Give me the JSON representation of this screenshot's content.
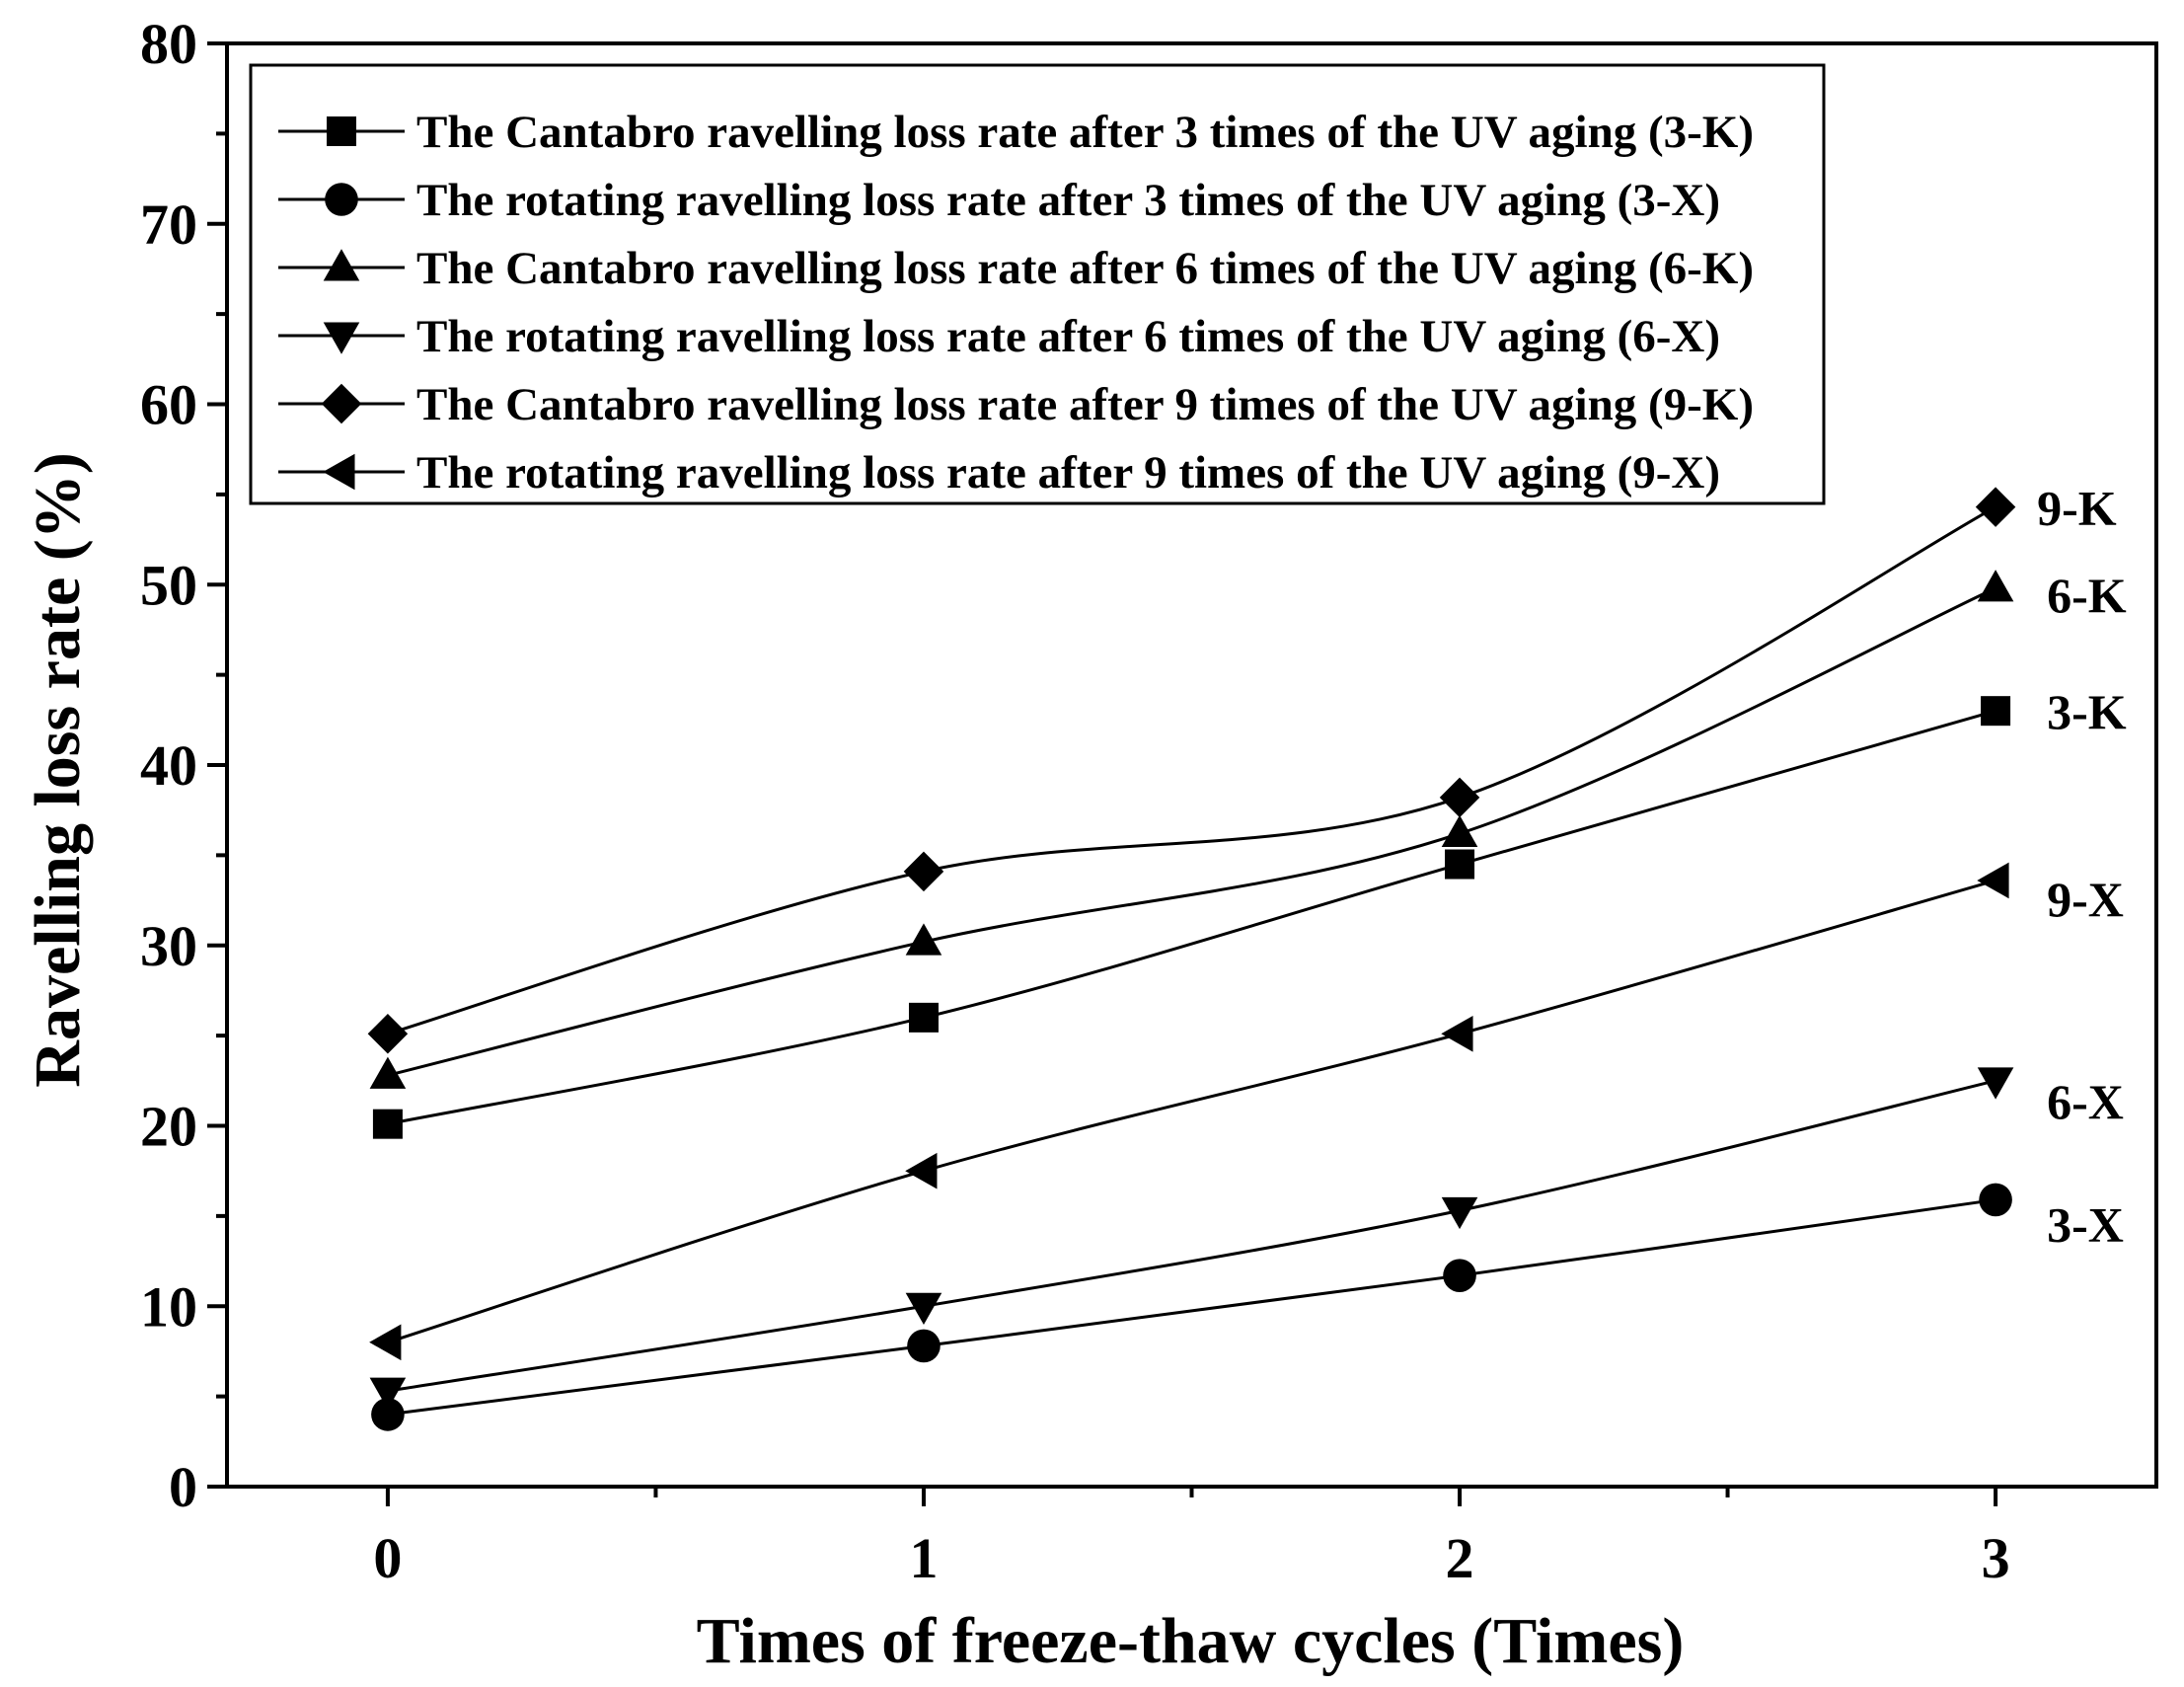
{
  "chart_data": {
    "type": "line",
    "title": "",
    "xlabel": "Times of freeze-thaw cycles (Times)",
    "ylabel": "Ravelling loss rate (%)",
    "xlim": [
      -0.3,
      3.3
    ],
    "ylim": [
      0,
      80
    ],
    "x_ticks": [
      0,
      1,
      2,
      3
    ],
    "y_ticks": [
      0,
      10,
      20,
      30,
      40,
      50,
      60,
      70,
      80
    ],
    "grid": false,
    "legend_position": "top-left",
    "line_color": "#000000",
    "x": [
      0,
      1,
      2,
      3
    ],
    "series": [
      {
        "name": "The Cantabro ravelling loss rate after 3 times of the UV aging (3-K)",
        "label": "3-K",
        "marker": "square",
        "values": [
          20.1,
          26.0,
          34.5,
          43.0
        ]
      },
      {
        "name": "The rotating ravelling loss rate after 3 times of the UV aging (3-X)",
        "label": "3-X",
        "marker": "circle",
        "values": [
          4.0,
          7.8,
          11.7,
          15.9
        ]
      },
      {
        "name": "The Cantabro ravelling loss rate after 6 times of the UV aging (6-K)",
        "label": "6-K",
        "marker": "triangle-up",
        "values": [
          22.8,
          30.2,
          36.2,
          49.8
        ]
      },
      {
        "name": "The rotating ravelling loss rate after 6 times of the UV aging (6-X)",
        "label": "6-X",
        "marker": "triangle-down",
        "values": [
          5.3,
          10.0,
          15.3,
          22.5
        ]
      },
      {
        "name": "The Cantabro ravelling loss rate after 9 times of the UV aging (9-K)",
        "label": "9-K",
        "marker": "diamond",
        "values": [
          25.1,
          34.1,
          38.2,
          54.3
        ]
      },
      {
        "name": "The rotating ravelling loss rate after 9 times of the UV aging (9-X)",
        "label": "9-X",
        "marker": "triangle-left",
        "values": [
          8.0,
          17.5,
          25.1,
          33.6
        ]
      }
    ]
  }
}
